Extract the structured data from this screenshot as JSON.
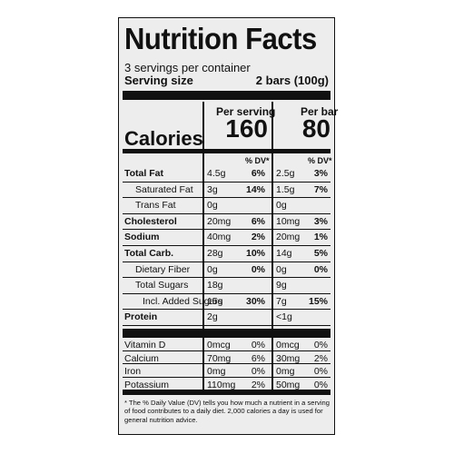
{
  "label": {
    "title": "Nutrition Facts",
    "servings_per_container": "3 servings per container",
    "serving_size_label": "Serving size",
    "serving_size_value": "2 bars (100g)",
    "per_serving_header": "Per serving",
    "per_bar_header": "Per bar",
    "calories_label": "Calories",
    "calories_per_serving": "160",
    "calories_per_bar": "80",
    "dv_header": "% DV*",
    "nutrients": [
      {
        "name": "Total Fat",
        "bold": true,
        "indent": 0,
        "serving_amount": "4.5g",
        "serving_dv": "6%",
        "bar_amount": "2.5g",
        "bar_dv": "3%"
      },
      {
        "name": "Saturated Fat",
        "bold": false,
        "indent": 1,
        "serving_amount": "3g",
        "serving_dv": "14%",
        "bar_amount": "1.5g",
        "bar_dv": "7%"
      },
      {
        "name": "Trans Fat",
        "bold": false,
        "indent": 1,
        "serving_amount": "0g",
        "serving_dv": "",
        "bar_amount": "0g",
        "bar_dv": ""
      },
      {
        "name": "Cholesterol",
        "bold": true,
        "indent": 0,
        "serving_amount": "20mg",
        "serving_dv": "6%",
        "bar_amount": "10mg",
        "bar_dv": "3%"
      },
      {
        "name": "Sodium",
        "bold": true,
        "indent": 0,
        "serving_amount": "40mg",
        "serving_dv": "2%",
        "bar_amount": "20mg",
        "bar_dv": "1%"
      },
      {
        "name": "Total Carb.",
        "bold": true,
        "indent": 0,
        "serving_amount": "28g",
        "serving_dv": "10%",
        "bar_amount": "14g",
        "bar_dv": "5%"
      },
      {
        "name": "Dietary Fiber",
        "bold": false,
        "indent": 1,
        "serving_amount": "0g",
        "serving_dv": "0%",
        "bar_amount": "0g",
        "bar_dv": "0%"
      },
      {
        "name": "Total Sugars",
        "bold": false,
        "indent": 1,
        "serving_amount": "18g",
        "serving_dv": "",
        "bar_amount": "9g",
        "bar_dv": ""
      },
      {
        "name": "Incl. Added Sugars",
        "bold": false,
        "indent": 2,
        "serving_amount": "15g",
        "serving_dv": "30%",
        "bar_amount": "7g",
        "bar_dv": "15%"
      },
      {
        "name": "Protein",
        "bold": true,
        "indent": 0,
        "serving_amount": "2g",
        "serving_dv": "",
        "bar_amount": "<1g",
        "bar_dv": ""
      }
    ],
    "vitamins": [
      {
        "name": "Vitamin D",
        "serving_amount": "0mcg",
        "serving_dv": "0%",
        "bar_amount": "0mcg",
        "bar_dv": "0%"
      },
      {
        "name": "Calcium",
        "serving_amount": "70mg",
        "serving_dv": "6%",
        "bar_amount": "30mg",
        "bar_dv": "2%"
      },
      {
        "name": "Iron",
        "serving_amount": "0mg",
        "serving_dv": "0%",
        "bar_amount": "0mg",
        "bar_dv": "0%"
      },
      {
        "name": "Potassium",
        "serving_amount": "110mg",
        "serving_dv": "2%",
        "bar_amount": "50mg",
        "bar_dv": "0%"
      }
    ],
    "footnote": "* The % Daily Value (DV) tells you how much a nutrient in a serving of food contributes to a daily diet. 2,000 calories a day is used for general nutrition advice."
  }
}
